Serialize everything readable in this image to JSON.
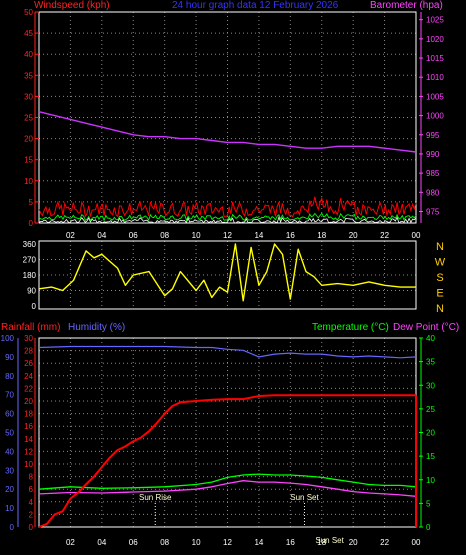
{
  "chart_data": [
    {
      "type": "line",
      "panel": "wind_baro",
      "ylabel_left": "Windspeed (kph)",
      "ylabel_right": "Barometer (hpa)",
      "title": "24 hour graph data   12 February 2026",
      "left_ticks": [
        "0",
        "5",
        "10",
        "15",
        "20",
        "25",
        "30",
        "35",
        "40",
        "45",
        "50"
      ],
      "right_ticks": [
        "975",
        "980",
        "985",
        "990",
        "995",
        "1000",
        "1005",
        "1010",
        "1015",
        "1020",
        "1025"
      ],
      "x_ticks": [
        "02",
        "04",
        "06",
        "08",
        "10",
        "12",
        "14",
        "16",
        "18",
        "20",
        "22",
        "00"
      ],
      "ylim_left": [
        0,
        50
      ],
      "ylim_right": [
        972,
        1027
      ],
      "colors": {
        "wind": "#ff0000",
        "gust": "#ffffff",
        "avg": "#00ff00",
        "baro": "#cc33ff",
        "left_axis": "#ff2222",
        "right_axis": "#ff44ff"
      },
      "series": [
        {
          "name": "Barometer",
          "axis": "right",
          "x": [
            0,
            1,
            2,
            3,
            4,
            5,
            6,
            7,
            8,
            9,
            10,
            11,
            12,
            13,
            14,
            15,
            16,
            17,
            18,
            19,
            20,
            21,
            22,
            23,
            24
          ],
          "values": [
            1001,
            1000,
            999,
            998,
            997,
            996,
            995,
            994.5,
            994.5,
            994,
            994,
            993.5,
            993,
            993,
            992.5,
            992.5,
            992,
            991.5,
            991.5,
            992,
            992,
            992,
            991.5,
            991,
            990.5
          ]
        }
      ]
    },
    {
      "type": "line",
      "panel": "wind_direction",
      "left_ticks": [
        "0",
        "90",
        "180",
        "270",
        "360"
      ],
      "compass_labels": [
        "N",
        "W",
        "S",
        "E",
        "N"
      ],
      "ylim": [
        0,
        360
      ],
      "x_ticks": [
        "02",
        "04",
        "06",
        "08",
        "10",
        "12",
        "14",
        "16",
        "18",
        "20",
        "22",
        "00"
      ],
      "color": "#ffff00",
      "series": [
        {
          "name": "Direction",
          "x": [
            0,
            0.8,
            1.5,
            2.2,
            3.0,
            3.5,
            4.0,
            5.0,
            5.5,
            6.0,
            7.0,
            8.0,
            8.5,
            9.0,
            10.0,
            10.5,
            11.0,
            11.5,
            12.0,
            12.5,
            13.0,
            13.5,
            14.0,
            14.5,
            15.0,
            15.5,
            16.0,
            16.5,
            17.0,
            17.5,
            18.0,
            19.0,
            20.0,
            21.0,
            22.0,
            23.0,
            24.0
          ],
          "values": [
            100,
            110,
            90,
            150,
            320,
            280,
            300,
            220,
            120,
            180,
            200,
            60,
            100,
            200,
            90,
            150,
            50,
            110,
            80,
            360,
            30,
            340,
            120,
            200,
            360,
            300,
            40,
            330,
            200,
            170,
            120,
            130,
            120,
            140,
            120,
            110,
            110
          ]
        }
      ]
    },
    {
      "type": "line",
      "panel": "rain_hum_temp",
      "labels": {
        "rainfall": "Rainfall (mm)",
        "humidity": "Humidity (%)",
        "temperature": "Temperature (°C)",
        "dewpoint": "Dew Point (°C)"
      },
      "humidity_ticks": [
        "0",
        "10",
        "20",
        "30",
        "40",
        "50",
        "60",
        "70",
        "80",
        "90",
        "100"
      ],
      "rain_ticks": [
        "0",
        "2",
        "4",
        "6",
        "8",
        "10",
        "12",
        "14",
        "16",
        "18",
        "20",
        "22",
        "24",
        "26",
        "28",
        "30"
      ],
      "temp_ticks": [
        "0",
        "5",
        "10",
        "15",
        "20",
        "25",
        "30",
        "35",
        "40"
      ],
      "x_ticks": [
        "02",
        "04",
        "06",
        "08",
        "10",
        "12",
        "14",
        "16",
        "18",
        "20",
        "22",
        "00"
      ],
      "annotations": [
        "Sun Rise",
        "Sun Set",
        "Sun Set"
      ],
      "ylim_rain": [
        0,
        30
      ],
      "ylim_temp": [
        0,
        40
      ],
      "ylim_hum": [
        0,
        100
      ],
      "colors": {
        "rain": "#ff0000",
        "humidity": "#6666ff",
        "temp": "#00ff00",
        "dew": "#ff44ff"
      },
      "series": [
        {
          "name": "Rainfall",
          "axis": "rain",
          "x": [
            0,
            0.5,
            1.0,
            1.5,
            2.0,
            2.5,
            3.0,
            3.5,
            4.0,
            4.5,
            5.0,
            5.5,
            6.0,
            6.5,
            7.0,
            7.5,
            8.0,
            8.5,
            9.0,
            10.0,
            11.0,
            12.0,
            13.0,
            14.0,
            15.0,
            16.0,
            17.0,
            18.0,
            20.0,
            22.0,
            24.0
          ],
          "values": [
            0,
            0.5,
            2,
            2.5,
            4.5,
            5.5,
            6.8,
            8,
            9.5,
            11,
            12.2,
            12.8,
            13.6,
            14.2,
            15.2,
            16.5,
            18,
            19.2,
            19.8,
            20,
            20.2,
            20.3,
            20.3,
            20.8,
            20.9,
            20.9,
            20.9,
            20.9,
            20.9,
            20.9,
            20.9
          ]
        },
        {
          "name": "Humidity",
          "axis": "hum",
          "x": [
            0,
            2,
            4,
            6,
            8,
            10,
            11,
            12,
            13,
            14,
            15,
            16,
            17,
            18,
            19,
            20,
            21,
            22,
            23,
            24
          ],
          "values": [
            95,
            95.5,
            95.5,
            95.5,
            95.5,
            95,
            95,
            94,
            93.5,
            90,
            91.5,
            92,
            91.5,
            91.5,
            90.5,
            90,
            90.5,
            90,
            89.5,
            90
          ]
        },
        {
          "name": "Temperature",
          "axis": "temp",
          "x": [
            0,
            2,
            4,
            6,
            8,
            10,
            11,
            12,
            13,
            14,
            15,
            16,
            17,
            18,
            19,
            20,
            21,
            22,
            23,
            24
          ],
          "values": [
            8,
            8.5,
            8.2,
            8.3,
            8.5,
            9,
            9.5,
            10.5,
            11,
            11.2,
            11,
            11,
            10.8,
            10.5,
            10,
            9.5,
            9,
            8.8,
            8.8,
            8.5
          ]
        },
        {
          "name": "Dew Point",
          "axis": "temp",
          "x": [
            0,
            2,
            4,
            6,
            8,
            10,
            11,
            12,
            13,
            14,
            15,
            16,
            17,
            18,
            19,
            20,
            21,
            22,
            23,
            24
          ],
          "values": [
            7,
            7.3,
            7.2,
            7.4,
            7.6,
            8,
            8.5,
            9.2,
            9.8,
            9.5,
            9.5,
            9.3,
            9,
            8.5,
            8,
            7.5,
            7.2,
            7,
            6.8,
            6.5
          ]
        }
      ]
    }
  ]
}
